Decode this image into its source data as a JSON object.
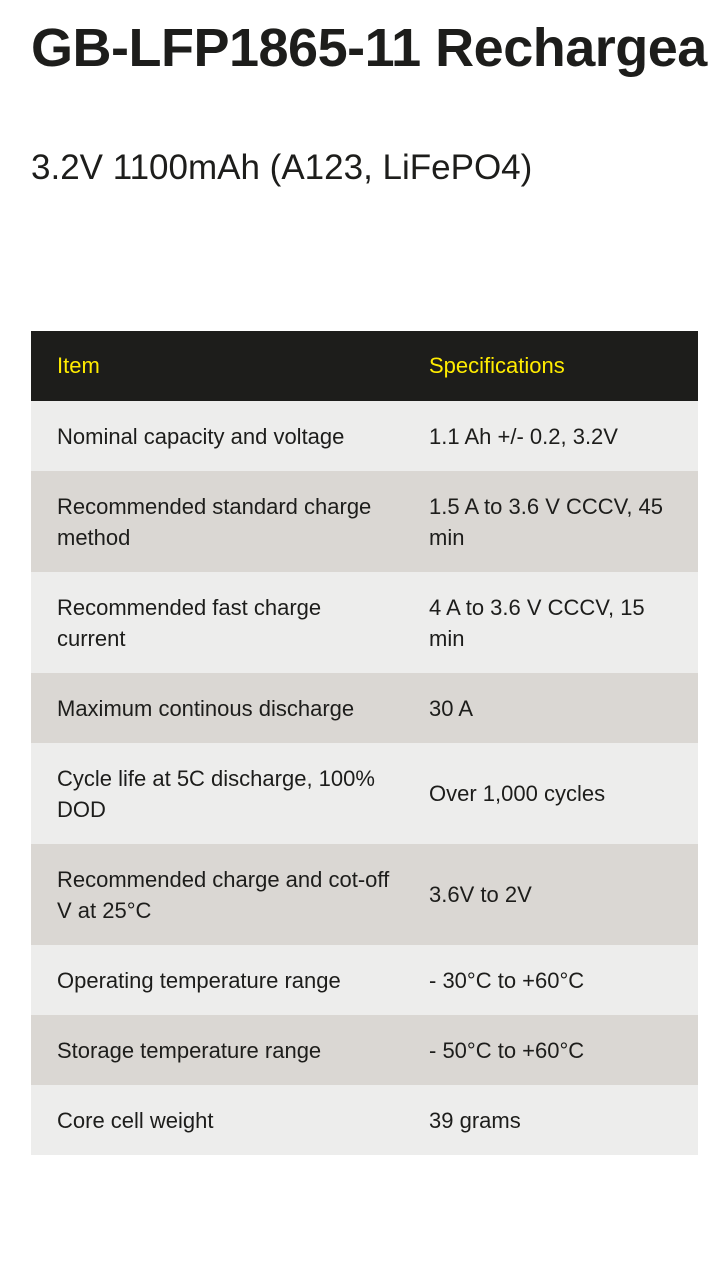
{
  "header": {
    "title": "GB-LFP1865-11 Rechargea",
    "subtitle": "3.2V 1100mAh (A123, LiFePO4)"
  },
  "table": {
    "columns": [
      "Item",
      "Specifications"
    ],
    "rows": [
      {
        "item": "Nominal capacity and voltage",
        "spec": "1.1 Ah +/- 0.2, 3.2V"
      },
      {
        "item": "Recommended standard charge method",
        "spec": "1.5 A to 3.6 V CCCV, 45 min"
      },
      {
        "item": "Recommended fast charge current",
        "spec": "4 A to 3.6 V CCCV, 15 min"
      },
      {
        "item": "Maximum continous discharge",
        "spec": "30 A"
      },
      {
        "item": "Cycle life at 5C discharge, 100% DOD",
        "spec": "Over 1,000 cycles"
      },
      {
        "item": "Recommended charge and cot-off V at 25°C",
        "spec": "3.6V to 2V"
      },
      {
        "item": "Operating temperature range",
        "spec": "- 30°C to +60°C"
      },
      {
        "item": "Storage temperature range",
        "spec": "- 50°C to +60°C"
      },
      {
        "item": "Core cell weight",
        "spec": "39 grams"
      }
    ]
  },
  "colors": {
    "header_bg": "#1d1d1b",
    "header_text": "#ffec00",
    "row_light": "#ededec",
    "row_dark": "#dad7d3",
    "text": "#1d1d1b"
  }
}
